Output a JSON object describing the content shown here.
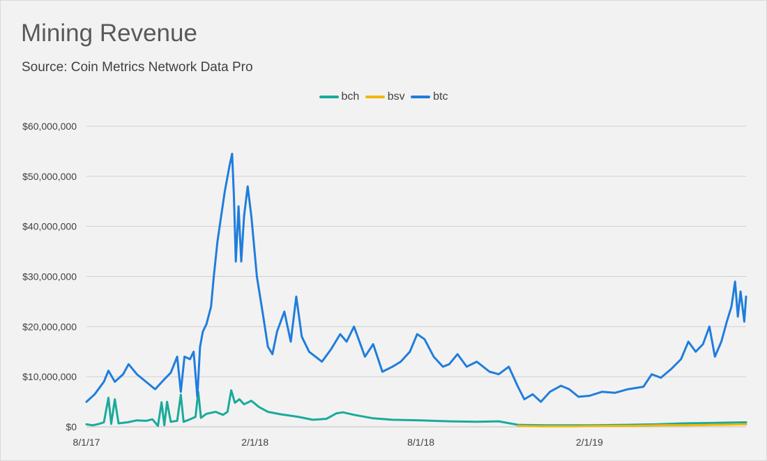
{
  "header": {
    "title": "Mining Revenue",
    "subtitle": "Source:  Coin Metrics Network Data Pro"
  },
  "colors": {
    "bch": "#1aaa9b",
    "bsv": "#f2b705",
    "btc": "#1f7ddc",
    "grid": "#d0d0d0",
    "background": "#f2f2f2"
  },
  "chart_data": {
    "type": "line",
    "title": "Mining Revenue",
    "subtitle": "Source:  Coin Metrics Network Data Pro",
    "xlabel": "",
    "ylabel": "",
    "x_type": "date",
    "xlim": [
      "2017-08-01",
      "2019-07-22"
    ],
    "ylim": [
      0,
      60000000
    ],
    "yticks": [
      0,
      10000000,
      20000000,
      30000000,
      40000000,
      50000000,
      60000000
    ],
    "ytick_labels": [
      "$0",
      "$10,000,000",
      "$20,000,000",
      "$30,000,000",
      "$40,000,000",
      "$50,000,000",
      "$60,000,000"
    ],
    "xticks": [
      "2017-08-01",
      "2018-02-01",
      "2018-08-01",
      "2019-02-01"
    ],
    "xtick_labels": [
      "8/1/17",
      "2/1/18",
      "8/1/18",
      "2/1/19"
    ],
    "grid": "horizontal",
    "legend": "top-center",
    "series": [
      {
        "name": "bch",
        "color": "#1aaa9b",
        "points": [
          [
            "2017-08-01",
            500000
          ],
          [
            "2017-08-08",
            300000
          ],
          [
            "2017-08-15",
            600000
          ],
          [
            "2017-08-20",
            900000
          ],
          [
            "2017-08-25",
            5800000
          ],
          [
            "2017-08-28",
            600000
          ],
          [
            "2017-09-01",
            5500000
          ],
          [
            "2017-09-05",
            700000
          ],
          [
            "2017-09-15",
            900000
          ],
          [
            "2017-09-25",
            1300000
          ],
          [
            "2017-10-05",
            1200000
          ],
          [
            "2017-10-12",
            1500000
          ],
          [
            "2017-10-18",
            200000
          ],
          [
            "2017-10-22",
            4900000
          ],
          [
            "2017-10-25",
            300000
          ],
          [
            "2017-10-28",
            5000000
          ],
          [
            "2017-11-01",
            1000000
          ],
          [
            "2017-11-08",
            1200000
          ],
          [
            "2017-11-12",
            6400000
          ],
          [
            "2017-11-15",
            1000000
          ],
          [
            "2017-11-22",
            1500000
          ],
          [
            "2017-11-28",
            2000000
          ],
          [
            "2017-12-01",
            7000000
          ],
          [
            "2017-12-04",
            1800000
          ],
          [
            "2017-12-10",
            2600000
          ],
          [
            "2017-12-20",
            3000000
          ],
          [
            "2017-12-28",
            2400000
          ],
          [
            "2018-01-02",
            3000000
          ],
          [
            "2018-01-06",
            7300000
          ],
          [
            "2018-01-10",
            4800000
          ],
          [
            "2018-01-15",
            5500000
          ],
          [
            "2018-01-20",
            4500000
          ],
          [
            "2018-01-28",
            5200000
          ],
          [
            "2018-02-05",
            4000000
          ],
          [
            "2018-02-15",
            3000000
          ],
          [
            "2018-03-01",
            2500000
          ],
          [
            "2018-03-20",
            2000000
          ],
          [
            "2018-04-05",
            1400000
          ],
          [
            "2018-04-20",
            1600000
          ],
          [
            "2018-05-01",
            2700000
          ],
          [
            "2018-05-08",
            2900000
          ],
          [
            "2018-05-20",
            2400000
          ],
          [
            "2018-06-10",
            1700000
          ],
          [
            "2018-07-01",
            1400000
          ],
          [
            "2018-08-01",
            1300000
          ],
          [
            "2018-09-01",
            1100000
          ],
          [
            "2018-10-01",
            1000000
          ],
          [
            "2018-10-25",
            1100000
          ],
          [
            "2018-11-15",
            400000
          ],
          [
            "2018-12-15",
            300000
          ],
          [
            "2019-02-01",
            300000
          ],
          [
            "2019-03-15",
            400000
          ],
          [
            "2019-04-15",
            500000
          ],
          [
            "2019-05-15",
            700000
          ],
          [
            "2019-06-20",
            800000
          ],
          [
            "2019-07-22",
            900000
          ]
        ]
      },
      {
        "name": "bsv",
        "color": "#f2b705",
        "points": [
          [
            "2018-11-15",
            200000
          ],
          [
            "2018-12-10",
            100000
          ],
          [
            "2019-01-15",
            100000
          ],
          [
            "2019-02-15",
            200000
          ],
          [
            "2019-03-20",
            200000
          ],
          [
            "2019-04-20",
            300000
          ],
          [
            "2019-05-20",
            300000
          ],
          [
            "2019-06-20",
            400000
          ],
          [
            "2019-07-22",
            500000
          ]
        ]
      },
      {
        "name": "btc",
        "color": "#1f7ddc",
        "points": [
          [
            "2017-08-01",
            5000000
          ],
          [
            "2017-08-10",
            6500000
          ],
          [
            "2017-08-20",
            9000000
          ],
          [
            "2017-08-25",
            11200000
          ],
          [
            "2017-09-01",
            9000000
          ],
          [
            "2017-09-10",
            10500000
          ],
          [
            "2017-09-16",
            12500000
          ],
          [
            "2017-09-25",
            10500000
          ],
          [
            "2017-10-05",
            9000000
          ],
          [
            "2017-10-15",
            7500000
          ],
          [
            "2017-10-25",
            9500000
          ],
          [
            "2017-11-01",
            10800000
          ],
          [
            "2017-11-08",
            14000000
          ],
          [
            "2017-11-12",
            7000000
          ],
          [
            "2017-11-16",
            14000000
          ],
          [
            "2017-11-22",
            13500000
          ],
          [
            "2017-11-26",
            15000000
          ],
          [
            "2017-11-30",
            6000000
          ],
          [
            "2017-12-03",
            16000000
          ],
          [
            "2017-12-06",
            19000000
          ],
          [
            "2017-12-10",
            20500000
          ],
          [
            "2017-12-15",
            24000000
          ],
          [
            "2017-12-18",
            30000000
          ],
          [
            "2017-12-22",
            37000000
          ],
          [
            "2017-12-26",
            42000000
          ],
          [
            "2017-12-30",
            47000000
          ],
          [
            "2018-01-04",
            52000000
          ],
          [
            "2018-01-07",
            54500000
          ],
          [
            "2018-01-09",
            46000000
          ],
          [
            "2018-01-11",
            33000000
          ],
          [
            "2018-01-14",
            44000000
          ],
          [
            "2018-01-17",
            33000000
          ],
          [
            "2018-01-20",
            42000000
          ],
          [
            "2018-01-24",
            48000000
          ],
          [
            "2018-01-28",
            42000000
          ],
          [
            "2018-02-03",
            30000000
          ],
          [
            "2018-02-10",
            22000000
          ],
          [
            "2018-02-15",
            16000000
          ],
          [
            "2018-02-20",
            14500000
          ],
          [
            "2018-02-25",
            19000000
          ],
          [
            "2018-03-05",
            23000000
          ],
          [
            "2018-03-12",
            17000000
          ],
          [
            "2018-03-18",
            26000000
          ],
          [
            "2018-03-24",
            18000000
          ],
          [
            "2018-04-01",
            15000000
          ],
          [
            "2018-04-15",
            13000000
          ],
          [
            "2018-04-25",
            15500000
          ],
          [
            "2018-05-05",
            18500000
          ],
          [
            "2018-05-12",
            17000000
          ],
          [
            "2018-05-20",
            20000000
          ],
          [
            "2018-06-01",
            14000000
          ],
          [
            "2018-06-10",
            16500000
          ],
          [
            "2018-06-20",
            11000000
          ],
          [
            "2018-07-01",
            12000000
          ],
          [
            "2018-07-10",
            13000000
          ],
          [
            "2018-07-20",
            15000000
          ],
          [
            "2018-07-28",
            18500000
          ],
          [
            "2018-08-05",
            17500000
          ],
          [
            "2018-08-15",
            14000000
          ],
          [
            "2018-08-25",
            12000000
          ],
          [
            "2018-09-01",
            12500000
          ],
          [
            "2018-09-10",
            14500000
          ],
          [
            "2018-09-20",
            12000000
          ],
          [
            "2018-10-01",
            13000000
          ],
          [
            "2018-10-15",
            11000000
          ],
          [
            "2018-10-25",
            10500000
          ],
          [
            "2018-11-05",
            12000000
          ],
          [
            "2018-11-15",
            8000000
          ],
          [
            "2018-11-22",
            5500000
          ],
          [
            "2018-12-01",
            6500000
          ],
          [
            "2018-12-10",
            5000000
          ],
          [
            "2018-12-20",
            7000000
          ],
          [
            "2019-01-01",
            8200000
          ],
          [
            "2019-01-10",
            7500000
          ],
          [
            "2019-01-20",
            6000000
          ],
          [
            "2019-02-01",
            6200000
          ],
          [
            "2019-02-15",
            7000000
          ],
          [
            "2019-03-01",
            6800000
          ],
          [
            "2019-03-15",
            7500000
          ],
          [
            "2019-04-01",
            8000000
          ],
          [
            "2019-04-10",
            10500000
          ],
          [
            "2019-04-20",
            9800000
          ],
          [
            "2019-05-01",
            11500000
          ],
          [
            "2019-05-12",
            13500000
          ],
          [
            "2019-05-20",
            17000000
          ],
          [
            "2019-05-28",
            15000000
          ],
          [
            "2019-06-05",
            16500000
          ],
          [
            "2019-06-12",
            20000000
          ],
          [
            "2019-06-18",
            14000000
          ],
          [
            "2019-06-25",
            17000000
          ],
          [
            "2019-07-01",
            21000000
          ],
          [
            "2019-07-06",
            24000000
          ],
          [
            "2019-07-10",
            29000000
          ],
          [
            "2019-07-13",
            22000000
          ],
          [
            "2019-07-16",
            27000000
          ],
          [
            "2019-07-20",
            21000000
          ],
          [
            "2019-07-22",
            26000000
          ]
        ]
      }
    ]
  }
}
